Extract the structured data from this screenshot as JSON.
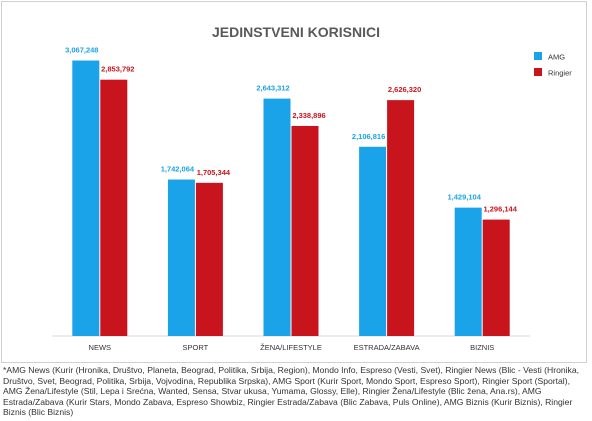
{
  "chart_data": {
    "type": "bar",
    "title": "JEDINSTVENI KORISNICI",
    "categories": [
      "NEWS",
      "SPORT",
      "ŽENA/LIFESTYLE",
      "ESTRADA/ZABAVA",
      "BIZNIS"
    ],
    "series": [
      {
        "name": "AMG",
        "color": "#1aa3e8",
        "values": [
          3067248,
          1742064,
          2643312,
          2106816,
          1429104
        ],
        "labels": [
          "3,067,248",
          "1,742,064",
          "2,643,312",
          "2,106,816",
          "1,429,104"
        ]
      },
      {
        "name": "Ringier",
        "color": "#c8141c",
        "values": [
          2853792,
          1705344,
          2338896,
          2626320,
          1296144
        ],
        "labels": [
          "2,853,792",
          "1,705,344",
          "2,338,896",
          "2,626,320",
          "1,296,144"
        ]
      }
    ],
    "ylim": [
      0,
      3600000
    ],
    "grid": false,
    "legend": "top-right"
  },
  "footnote": "*AMG News (Kurir (Hronika, Društvo, Planeta, Beograd, Politika, Srbija, Region), Mondo Info, Espreso (Vesti, Svet), Ringier News (Blic - Vesti (Hronika, Društvo, Svet, Beograd, Politika, Srbija, Vojvodina, Republika Srpska), AMG Sport (Kurir Sport, Mondo Sport, Espreso Sport), Ringier Sport (Sportal), AMG Žena/Lifestyle (Stil, Lepa i Srećna, Wanted, Sensa, Stvar ukusa, Yumama, Glossy, Elle), Ringier Žena/Lifestyle (Blic žena, Ana.rs), AMG Estrada/Zabava (Kurir Stars, Mondo Zabava, Espreso Showbiz, Ringier Estrada/Zabava (Blic Zabava, Puls Online), AMG Biznis (Kurir Biznis), Ringier Biznis (Blic Biznis)"
}
